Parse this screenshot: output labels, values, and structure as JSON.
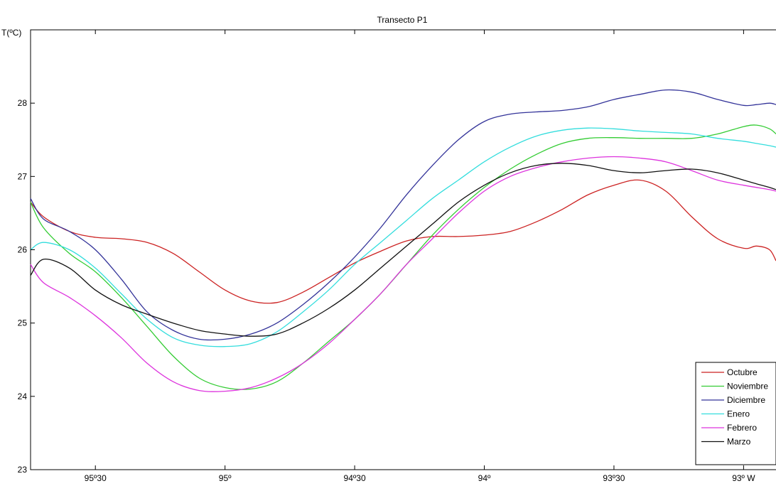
{
  "chart_data": {
    "type": "line",
    "title": "Transecto P1",
    "ylabel": "T(ºC)",
    "xlabel": "",
    "xlim": [
      -95.75,
      -92.875
    ],
    "ylim": [
      23,
      29
    ],
    "xticks": [
      {
        "value": -95.5,
        "label": "95º30"
      },
      {
        "value": -95.0,
        "label": "95º"
      },
      {
        "value": -94.5,
        "label": "94º30"
      },
      {
        "value": -94.0,
        "label": "94º"
      },
      {
        "value": -93.5,
        "label": "93º30"
      },
      {
        "value": -93.0,
        "label": "93º W"
      }
    ],
    "yticks": [
      23,
      24,
      25,
      26,
      27,
      28
    ],
    "grid": false,
    "legend_position": "bottom-right",
    "series": [
      {
        "name": "Octubre",
        "color": "#cc2222",
        "x": [
          -95.75,
          -95.7,
          -95.6,
          -95.5,
          -95.4,
          -95.3,
          -95.2,
          -95.1,
          -95.0,
          -94.9,
          -94.8,
          -94.7,
          -94.6,
          -94.5,
          -94.4,
          -94.3,
          -94.2,
          -94.1,
          -94.0,
          -93.9,
          -93.8,
          -93.7,
          -93.6,
          -93.5,
          -93.4,
          -93.3,
          -93.2,
          -93.1,
          -93.0,
          -92.95,
          -92.9,
          -92.875
        ],
        "y": [
          26.65,
          26.45,
          26.25,
          26.17,
          26.15,
          26.1,
          25.95,
          25.7,
          25.45,
          25.3,
          25.28,
          25.42,
          25.62,
          25.82,
          25.98,
          26.12,
          26.18,
          26.18,
          26.2,
          26.25,
          26.38,
          26.55,
          26.75,
          26.88,
          26.95,
          26.8,
          26.45,
          26.15,
          26.02,
          26.05,
          26.0,
          25.85
        ]
      },
      {
        "name": "Noviembre",
        "color": "#33cc33",
        "x": [
          -95.75,
          -95.7,
          -95.6,
          -95.5,
          -95.4,
          -95.3,
          -95.2,
          -95.1,
          -95.0,
          -94.9,
          -94.8,
          -94.7,
          -94.6,
          -94.5,
          -94.4,
          -94.3,
          -94.2,
          -94.1,
          -94.0,
          -93.9,
          -93.8,
          -93.7,
          -93.6,
          -93.5,
          -93.4,
          -93.3,
          -93.2,
          -93.1,
          -93.0,
          -92.95,
          -92.9,
          -92.875
        ],
        "y": [
          26.65,
          26.3,
          25.95,
          25.7,
          25.35,
          24.95,
          24.55,
          24.25,
          24.12,
          24.1,
          24.2,
          24.45,
          24.75,
          25.05,
          25.4,
          25.8,
          26.2,
          26.55,
          26.85,
          27.1,
          27.3,
          27.45,
          27.52,
          27.53,
          27.52,
          27.52,
          27.52,
          27.58,
          27.68,
          27.7,
          27.65,
          27.58
        ]
      },
      {
        "name": "Diciembre",
        "color": "#333399",
        "x": [
          -95.75,
          -95.7,
          -95.6,
          -95.5,
          -95.4,
          -95.3,
          -95.2,
          -95.1,
          -95.0,
          -94.9,
          -94.8,
          -94.7,
          -94.6,
          -94.5,
          -94.4,
          -94.3,
          -94.2,
          -94.1,
          -94.0,
          -93.9,
          -93.8,
          -93.7,
          -93.6,
          -93.5,
          -93.4,
          -93.3,
          -93.2,
          -93.1,
          -93.0,
          -92.95,
          -92.9,
          -92.875
        ],
        "y": [
          26.7,
          26.42,
          26.25,
          26.0,
          25.6,
          25.15,
          24.9,
          24.78,
          24.78,
          24.85,
          25.0,
          25.25,
          25.55,
          25.9,
          26.3,
          26.75,
          27.15,
          27.5,
          27.75,
          27.85,
          27.88,
          27.9,
          27.95,
          28.05,
          28.12,
          28.18,
          28.15,
          28.05,
          27.97,
          27.98,
          28.0,
          27.98
        ]
      },
      {
        "name": "Enero",
        "color": "#33dddd",
        "x": [
          -95.75,
          -95.7,
          -95.6,
          -95.5,
          -95.4,
          -95.3,
          -95.2,
          -95.1,
          -95.0,
          -94.9,
          -94.8,
          -94.7,
          -94.6,
          -94.5,
          -94.4,
          -94.3,
          -94.2,
          -94.1,
          -94.0,
          -93.9,
          -93.8,
          -93.7,
          -93.6,
          -93.5,
          -93.4,
          -93.3,
          -93.2,
          -93.1,
          -93.0,
          -92.95,
          -92.9,
          -92.875
        ],
        "y": [
          26.0,
          26.1,
          26.0,
          25.75,
          25.4,
          25.05,
          24.8,
          24.7,
          24.68,
          24.72,
          24.88,
          25.15,
          25.45,
          25.8,
          26.1,
          26.4,
          26.7,
          26.95,
          27.2,
          27.4,
          27.55,
          27.63,
          27.66,
          27.65,
          27.62,
          27.6,
          27.58,
          27.52,
          27.48,
          27.45,
          27.42,
          27.4
        ]
      },
      {
        "name": "Febrero",
        "color": "#dd33dd",
        "x": [
          -95.75,
          -95.7,
          -95.6,
          -95.5,
          -95.4,
          -95.3,
          -95.2,
          -95.1,
          -95.0,
          -94.9,
          -94.8,
          -94.7,
          -94.6,
          -94.5,
          -94.4,
          -94.3,
          -94.2,
          -94.1,
          -94.0,
          -93.9,
          -93.8,
          -93.7,
          -93.6,
          -93.5,
          -93.4,
          -93.3,
          -93.2,
          -93.1,
          -93.0,
          -92.95,
          -92.9,
          -92.875
        ],
        "y": [
          25.8,
          25.55,
          25.35,
          25.1,
          24.8,
          24.45,
          24.2,
          24.08,
          24.07,
          24.12,
          24.25,
          24.45,
          24.72,
          25.05,
          25.4,
          25.8,
          26.15,
          26.5,
          26.8,
          27.0,
          27.12,
          27.2,
          27.25,
          27.27,
          27.25,
          27.2,
          27.08,
          26.95,
          26.88,
          26.85,
          26.82,
          26.8
        ]
      },
      {
        "name": "Marzo",
        "color": "#111111",
        "x": [
          -95.75,
          -95.7,
          -95.6,
          -95.5,
          -95.4,
          -95.3,
          -95.2,
          -95.1,
          -95.0,
          -94.9,
          -94.8,
          -94.7,
          -94.6,
          -94.5,
          -94.4,
          -94.3,
          -94.2,
          -94.1,
          -94.0,
          -93.9,
          -93.8,
          -93.7,
          -93.6,
          -93.5,
          -93.4,
          -93.3,
          -93.2,
          -93.1,
          -93.0,
          -92.95,
          -92.9,
          -92.875
        ],
        "y": [
          25.65,
          25.87,
          25.75,
          25.45,
          25.25,
          25.12,
          25.0,
          24.9,
          24.85,
          24.82,
          24.85,
          25.0,
          25.2,
          25.45,
          25.75,
          26.05,
          26.35,
          26.65,
          26.88,
          27.05,
          27.15,
          27.18,
          27.15,
          27.08,
          27.05,
          27.08,
          27.1,
          27.05,
          26.95,
          26.9,
          26.85,
          26.82
        ]
      }
    ]
  }
}
